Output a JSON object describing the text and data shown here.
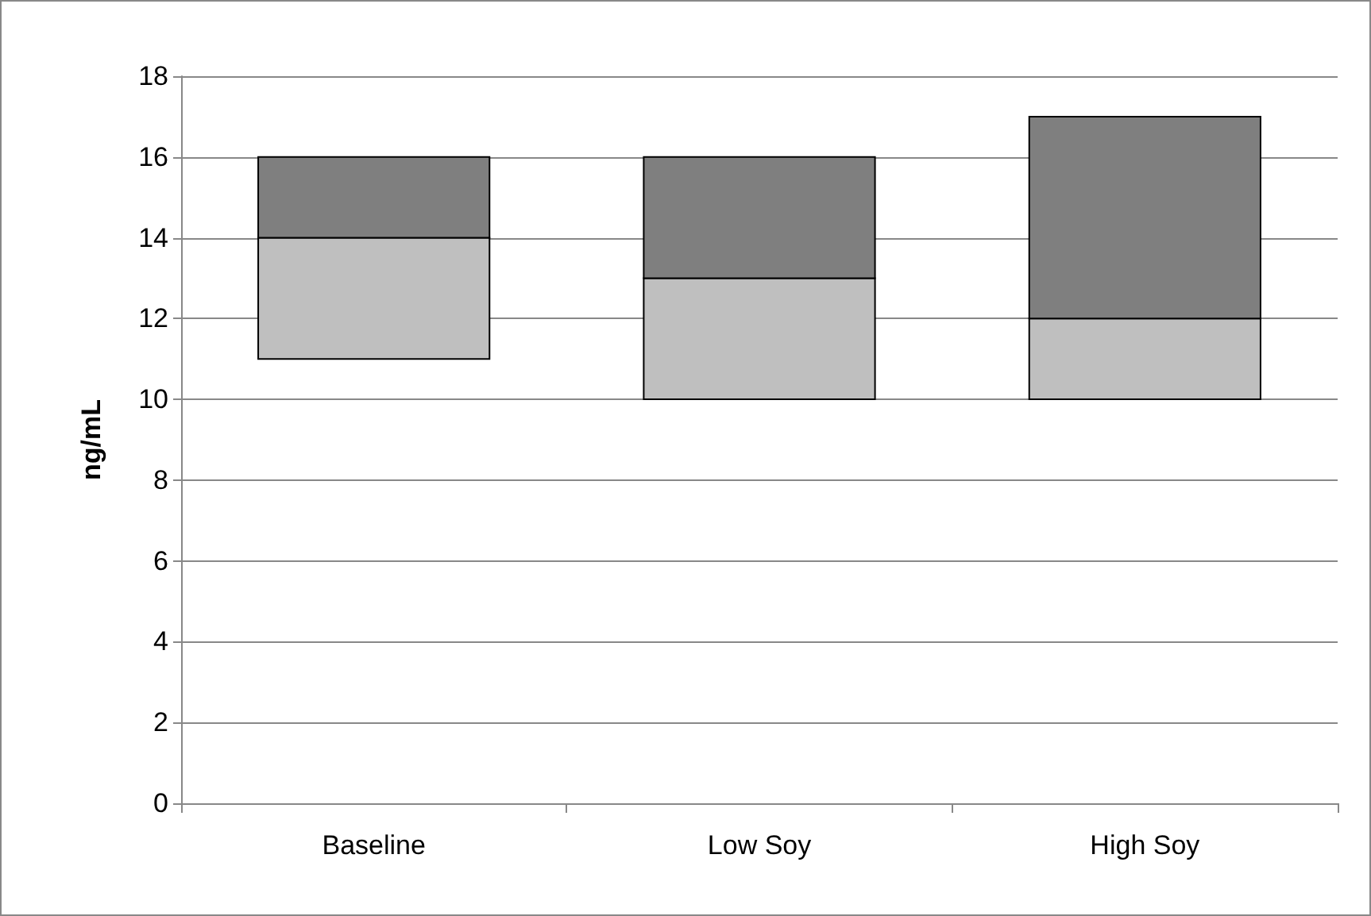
{
  "chart_data": {
    "type": "bar",
    "ylabel": "ng/mL",
    "categories": [
      "Baseline",
      "Low Soy",
      "High Soy"
    ],
    "series": [
      {
        "color": "#bfbfbf",
        "base": [
          11,
          10,
          10
        ],
        "values": [
          3,
          3,
          2
        ]
      },
      {
        "color": "#7f7f7f",
        "base": [
          14,
          13,
          12
        ],
        "values": [
          2,
          3,
          5
        ]
      }
    ],
    "ylim": [
      0,
      18
    ],
    "yticks": [
      0,
      2,
      4,
      6,
      8,
      10,
      12,
      14,
      16,
      18
    ],
    "grid": "y"
  }
}
